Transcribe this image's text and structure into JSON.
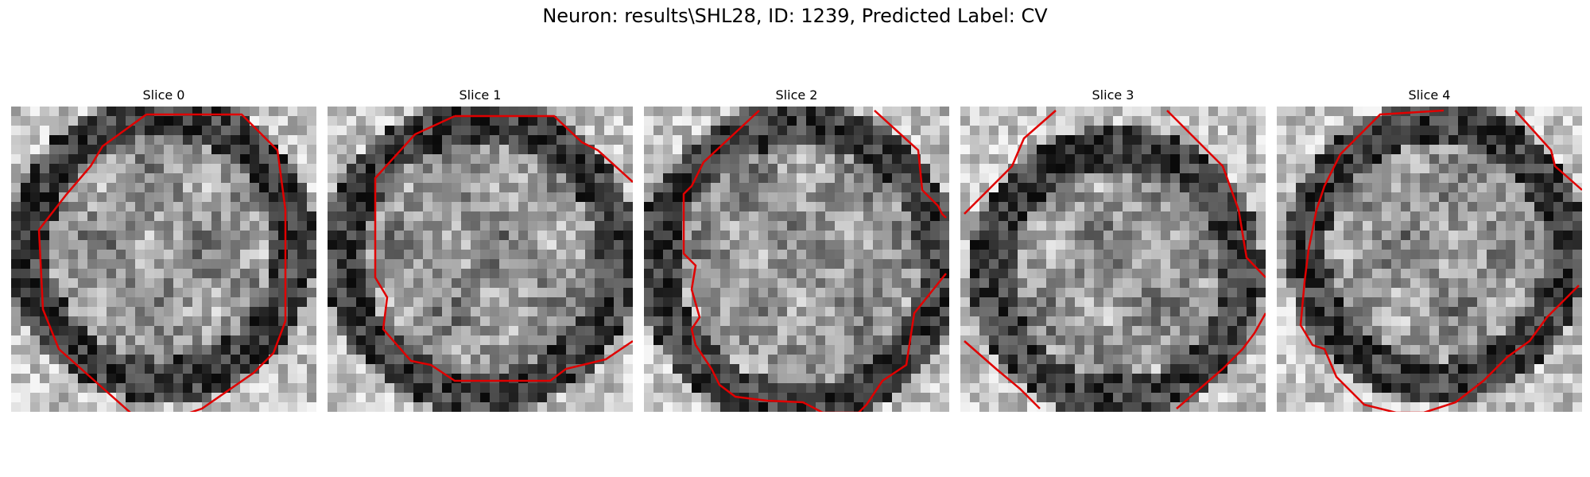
{
  "figure": {
    "title": "Neuron: results\\SHL28, ID: 1239, Predicted Label: CV"
  },
  "slices": [
    {
      "label": "Slice 0"
    },
    {
      "label": "Slice 1"
    },
    {
      "label": "Slice 2"
    },
    {
      "label": "Slice 3"
    },
    {
      "label": "Slice 4"
    }
  ],
  "style": {
    "contour_color": "#e00000",
    "colormap": "grayscale"
  }
}
